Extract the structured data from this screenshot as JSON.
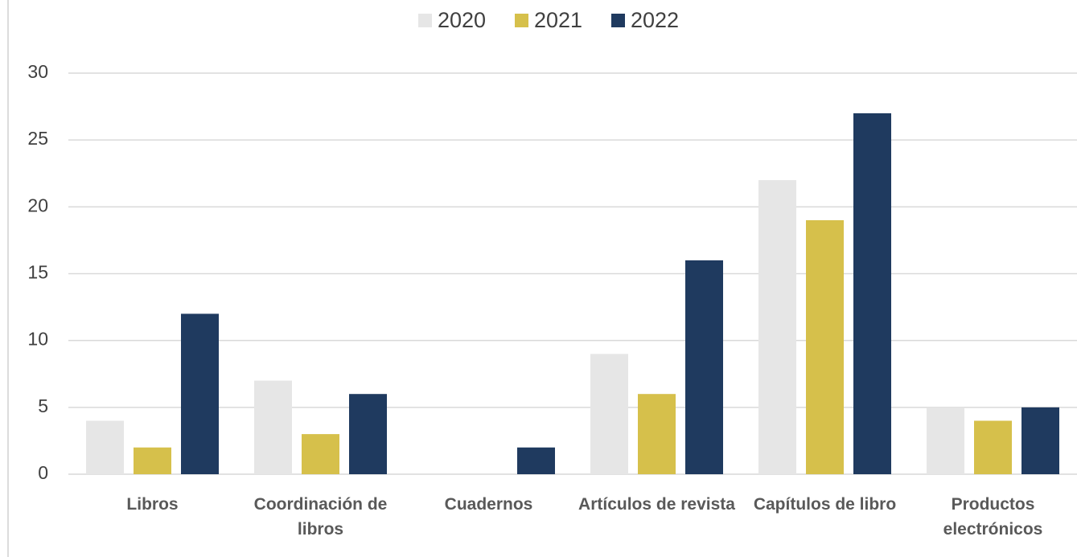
{
  "chart_data": {
    "type": "bar",
    "categories": [
      "Libros",
      "Coordinación de libros",
      "Cuadernos",
      "Artículos de revista",
      "Capítulos de libro",
      "Productos electrónicos"
    ],
    "series": [
      {
        "name": "2020",
        "color": "#e6e6e6",
        "values": [
          4,
          7,
          0,
          9,
          22,
          5
        ]
      },
      {
        "name": "2021",
        "color": "#d6c04b",
        "values": [
          2,
          3,
          0,
          6,
          19,
          4
        ]
      },
      {
        "name": "2022",
        "color": "#1f3a5f",
        "values": [
          12,
          6,
          2,
          16,
          27,
          5
        ]
      }
    ],
    "ylim": [
      0,
      30
    ],
    "yticks": [
      0,
      5,
      10,
      15,
      20,
      25,
      30
    ],
    "grid": true,
    "legend": "top"
  }
}
